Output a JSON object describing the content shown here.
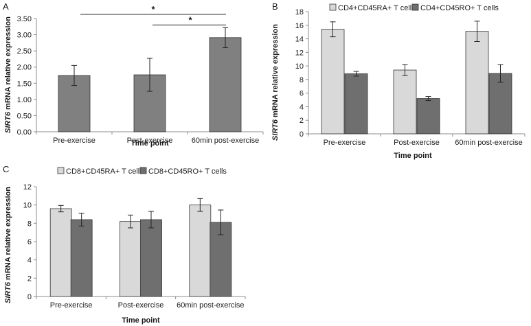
{
  "charts": [
    {
      "panel_label": "A",
      "type": "bar",
      "categories": [
        "Pre-exercise",
        "Post-exercise",
        "60min post-exercise"
      ],
      "series": [
        {
          "name": "",
          "color": "#808080",
          "values": [
            1.74,
            1.76,
            2.91
          ],
          "errors": [
            0.31,
            0.51,
            0.31
          ]
        }
      ],
      "xlabel": "Time point",
      "ylabel_italic": "SIRT6",
      "ylabel_rest": " mRNA relative expression",
      "ylim": [
        0,
        3.5
      ],
      "yticks": [
        "0.00",
        "0.50",
        "1.00",
        "1.50",
        "2.00",
        "2.50",
        "3.00",
        "3.50"
      ],
      "significance": [
        {
          "from": 0,
          "to": 2,
          "label": "*",
          "level": 3.63
        },
        {
          "from": 1,
          "to": 2,
          "label": "*",
          "level": 3.3
        }
      ]
    },
    {
      "panel_label": "B",
      "type": "bar",
      "categories": [
        "Pre-exercise",
        "Post-exercise",
        "60min post-exercise"
      ],
      "series": [
        {
          "name": "CD4+CD45RA+  T cells",
          "color": "#d9d9d9",
          "values": [
            15.4,
            9.4,
            15.1
          ],
          "errors": [
            1.1,
            0.8,
            1.5
          ]
        },
        {
          "name": "CD4+CD45RO+ T cells",
          "color": "#6f6f6f",
          "values": [
            8.85,
            5.2,
            8.9
          ],
          "errors": [
            0.35,
            0.3,
            1.3
          ]
        }
      ],
      "xlabel": "Time point",
      "ylabel_italic": "SIRT6",
      "ylabel_rest": " mRNA relative expression",
      "ylim": [
        0,
        18
      ],
      "yticks": [
        "0",
        "2",
        "4",
        "6",
        "8",
        "10",
        "12",
        "14",
        "16",
        "18"
      ]
    },
    {
      "panel_label": "C",
      "type": "bar",
      "categories": [
        "Pre-exercise",
        "Post-exercise",
        "60min post-exercise"
      ],
      "series": [
        {
          "name": "CD8+CD45RA+ T cells",
          "color": "#d9d9d9",
          "values": [
            9.6,
            8.2,
            10.0
          ],
          "errors": [
            0.35,
            0.7,
            0.7
          ]
        },
        {
          "name": "CD8+CD45RO+ T cells",
          "color": "#6f6f6f",
          "values": [
            8.4,
            8.4,
            8.1
          ],
          "errors": [
            0.7,
            0.9,
            1.35
          ]
        }
      ],
      "xlabel": "Time point",
      "ylabel_italic": "SIRT6",
      "ylabel_rest": " mRNA relative expression",
      "ylim": [
        0,
        12
      ],
      "yticks": [
        "0",
        "2",
        "4",
        "6",
        "8",
        "10",
        "12"
      ]
    }
  ]
}
